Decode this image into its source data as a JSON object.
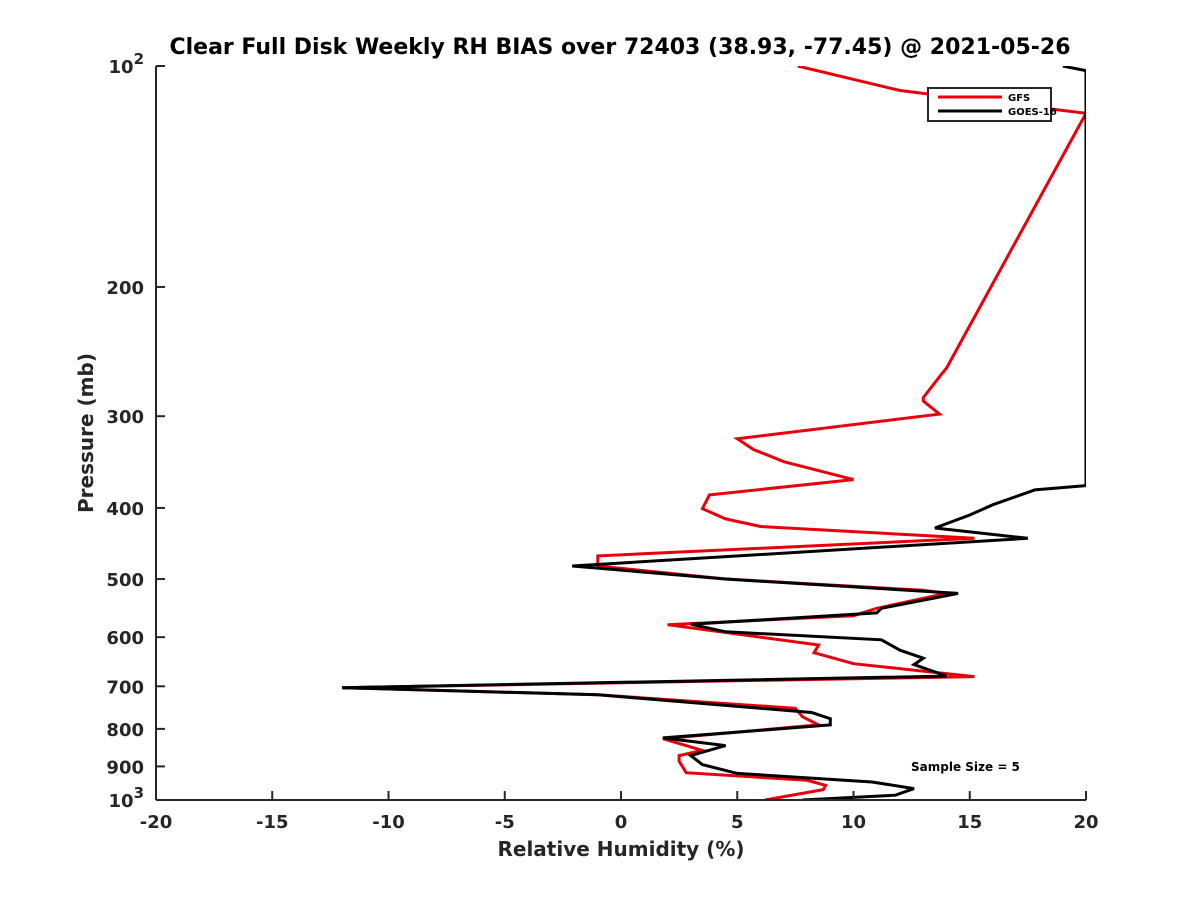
{
  "chart_data": {
    "type": "line",
    "title": "Clear Full Disk Weekly RH BIAS over 72403 (38.93, -77.45) @ 2021-05-26",
    "xlabel": "Relative Humidity (%)",
    "ylabel": "Pressure (mb)",
    "xlim": [
      -20,
      20
    ],
    "ylim": [
      100,
      1000
    ],
    "y_scale": "log",
    "y_reversed": true,
    "grid": false,
    "legend_position": "top-right",
    "x_ticks": [
      "-20",
      "-15",
      "-10",
      "-5",
      "0",
      "5",
      "10",
      "15",
      "20"
    ],
    "y_ticks": [
      {
        "value": 100,
        "base": "10",
        "exp": "2",
        "label": ""
      },
      {
        "value": 200,
        "label": "200"
      },
      {
        "value": 300,
        "label": "300"
      },
      {
        "value": 400,
        "label": "400"
      },
      {
        "value": 500,
        "label": "500"
      },
      {
        "value": 600,
        "label": "600"
      },
      {
        "value": 700,
        "label": "700"
      },
      {
        "value": 800,
        "label": "800"
      },
      {
        "value": 900,
        "label": "900"
      },
      {
        "value": 1000,
        "base": "10",
        "exp": "3",
        "label": ""
      }
    ],
    "series": [
      {
        "name": "GFS",
        "color": "#e8000b",
        "points": [
          {
            "x": 7.6,
            "y": 100
          },
          {
            "x": 12.0,
            "y": 108
          },
          {
            "x": 20.0,
            "y": 116
          },
          {
            "x": 14.0,
            "y": 258
          },
          {
            "x": 13.7,
            "y": 265
          },
          {
            "x": 13.0,
            "y": 283
          },
          {
            "x": 13.0,
            "y": 286
          },
          {
            "x": 13.7,
            "y": 298
          },
          {
            "x": 5.0,
            "y": 322
          },
          {
            "x": 5.7,
            "y": 333
          },
          {
            "x": 7.0,
            "y": 346
          },
          {
            "x": 10.0,
            "y": 366
          },
          {
            "x": 3.8,
            "y": 384
          },
          {
            "x": 3.5,
            "y": 401
          },
          {
            "x": 4.5,
            "y": 414
          },
          {
            "x": 6.0,
            "y": 424
          },
          {
            "x": 15.2,
            "y": 440
          },
          {
            "x": -1.0,
            "y": 465
          },
          {
            "x": -1.0,
            "y": 470
          },
          {
            "x": -1.0,
            "y": 480
          },
          {
            "x": 4.5,
            "y": 500
          },
          {
            "x": 13.0,
            "y": 518
          },
          {
            "x": 14.0,
            "y": 523
          },
          {
            "x": 11.0,
            "y": 548
          },
          {
            "x": 10.0,
            "y": 561
          },
          {
            "x": 2.0,
            "y": 577
          },
          {
            "x": 8.5,
            "y": 615
          },
          {
            "x": 8.3,
            "y": 630
          },
          {
            "x": 10.0,
            "y": 652
          },
          {
            "x": 15.2,
            "y": 679
          },
          {
            "x": -12.0,
            "y": 703
          },
          {
            "x": -1.0,
            "y": 719
          },
          {
            "x": 7.5,
            "y": 750
          },
          {
            "x": 7.8,
            "y": 770
          },
          {
            "x": 8.5,
            "y": 790
          },
          {
            "x": 1.8,
            "y": 825
          },
          {
            "x": 3.5,
            "y": 856
          },
          {
            "x": 2.5,
            "y": 870
          },
          {
            "x": 2.5,
            "y": 885
          },
          {
            "x": 2.8,
            "y": 918
          },
          {
            "x": 8.0,
            "y": 940
          },
          {
            "x": 8.8,
            "y": 955
          },
          {
            "x": 8.7,
            "y": 968
          },
          {
            "x": 6.2,
            "y": 1000
          }
        ]
      },
      {
        "name": "GOES-16",
        "color": "#000000",
        "points": [
          {
            "x": 19.0,
            "y": 100
          },
          {
            "x": 20.0,
            "y": 101.5
          },
          {
            "x": 20.0,
            "y": 373
          },
          {
            "x": 17.8,
            "y": 378
          },
          {
            "x": 16.0,
            "y": 396
          },
          {
            "x": 15.0,
            "y": 409
          },
          {
            "x": 13.5,
            "y": 426
          },
          {
            "x": 17.5,
            "y": 440
          },
          {
            "x": -2.1,
            "y": 480
          },
          {
            "x": 4.5,
            "y": 500
          },
          {
            "x": 14.5,
            "y": 523
          },
          {
            "x": 11.2,
            "y": 548
          },
          {
            "x": 11.0,
            "y": 556
          },
          {
            "x": 3.0,
            "y": 576
          },
          {
            "x": 4.5,
            "y": 590
          },
          {
            "x": 11.2,
            "y": 605
          },
          {
            "x": 12.0,
            "y": 625
          },
          {
            "x": 13.0,
            "y": 641
          },
          {
            "x": 12.6,
            "y": 654
          },
          {
            "x": 14.0,
            "y": 678
          },
          {
            "x": -12.0,
            "y": 703
          },
          {
            "x": -1.0,
            "y": 719
          },
          {
            "x": 8.2,
            "y": 760
          },
          {
            "x": 9.0,
            "y": 775
          },
          {
            "x": 9.0,
            "y": 790
          },
          {
            "x": 1.8,
            "y": 823
          },
          {
            "x": 4.5,
            "y": 843
          },
          {
            "x": 3.0,
            "y": 870
          },
          {
            "x": 3.5,
            "y": 895
          },
          {
            "x": 5.0,
            "y": 920
          },
          {
            "x": 10.8,
            "y": 945
          },
          {
            "x": 12.6,
            "y": 965
          },
          {
            "x": 11.8,
            "y": 985
          },
          {
            "x": 7.8,
            "y": 1000
          }
        ]
      }
    ],
    "legend": [
      {
        "label": "GFS",
        "color": "#e8000b"
      },
      {
        "label": "GOES-16",
        "color": "#000000"
      }
    ],
    "annotation": "Sample Size = 5"
  }
}
